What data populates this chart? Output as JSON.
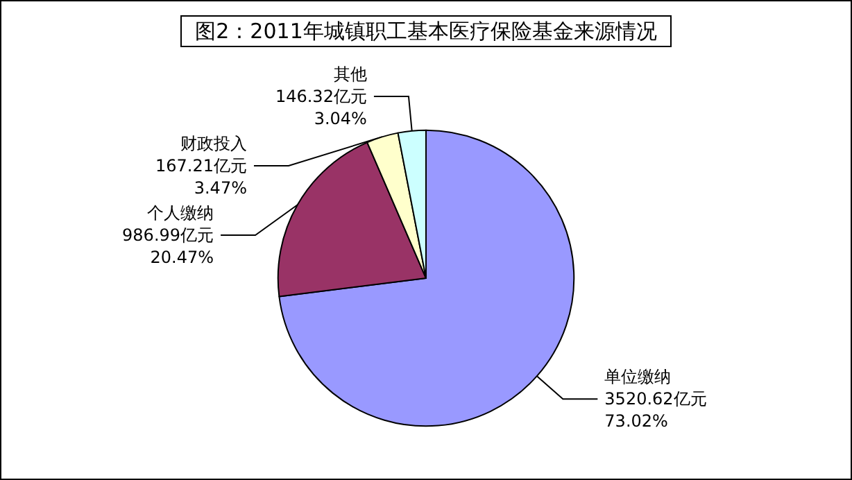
{
  "chart_data": {
    "type": "pie",
    "title": "图2：2011年城镇职工基本医疗保险基金来源情况",
    "categories": [
      "单位缴纳",
      "个人缴纳",
      "财政投入",
      "其他"
    ],
    "values": [
      3520.62,
      986.99,
      167.21,
      146.32
    ],
    "value_labels": [
      "3520.62亿元\n73.02%",
      "986.99亿元\n20.47%",
      "167.21亿元\n3.47%",
      "146.32亿元\n3.04%"
    ],
    "colors": [
      "#9999ff",
      "#993366",
      "#ffffcc",
      "#ccffff"
    ],
    "legend": false
  }
}
